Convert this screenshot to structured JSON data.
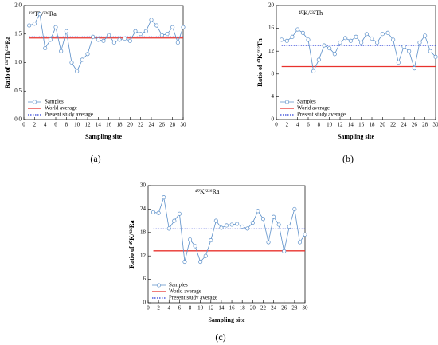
{
  "chart_data": [
    {
      "type": "line",
      "title": "²³²Th/²²⁶Ra",
      "caption": "(a)",
      "xlabel": "Sampling site",
      "ylabel": "Ratio of ²³²Th/²²⁶Ra",
      "x": [
        1,
        2,
        3,
        4,
        5,
        6,
        7,
        8,
        9,
        10,
        11,
        12,
        13,
        14,
        15,
        16,
        17,
        18,
        19,
        20,
        21,
        22,
        23,
        24,
        25,
        26,
        27,
        28,
        29,
        30
      ],
      "series": [
        {
          "name": "Samples",
          "color": "#5b8fc9",
          "values": [
            1.65,
            1.68,
            1.85,
            1.25,
            1.4,
            1.62,
            1.2,
            1.55,
            1.0,
            0.85,
            1.05,
            1.15,
            1.45,
            1.4,
            1.38,
            1.48,
            1.35,
            1.4,
            1.42,
            1.38,
            1.55,
            1.5,
            1.55,
            1.75,
            1.65,
            1.48,
            1.5,
            1.62,
            1.35,
            1.62
          ]
        }
      ],
      "hlines": [
        {
          "name": "World average",
          "color": "#e8322d",
          "value": 1.43,
          "style": "solid"
        },
        {
          "name": "Present study average",
          "color": "#2a3fd6",
          "value": 1.45,
          "style": "dotted"
        }
      ],
      "xlim": [
        0,
        30
      ],
      "xticks": [
        0,
        2,
        4,
        6,
        8,
        10,
        12,
        14,
        16,
        18,
        20,
        22,
        24,
        26,
        28,
        30
      ],
      "ylim": [
        0,
        2
      ],
      "yticks": [
        {
          "value": 0,
          "label": "0.0"
        },
        0.5,
        {
          "value": 1,
          "label": "1.0"
        },
        1.5,
        {
          "value": 2,
          "label": "2.0"
        }
      ],
      "legend": "lower left"
    },
    {
      "type": "line",
      "title": "⁴⁰K/²³²Th",
      "caption": "(b)",
      "xlabel": "Sampling site",
      "ylabel": "Ratio of ⁴⁰K/²³²Th",
      "x": [
        1,
        2,
        3,
        4,
        5,
        6,
        7,
        8,
        9,
        10,
        11,
        12,
        13,
        14,
        15,
        16,
        17,
        18,
        19,
        20,
        21,
        22,
        23,
        24,
        25,
        26,
        27,
        28,
        29,
        30
      ],
      "series": [
        {
          "name": "Samples",
          "color": "#5b8fc9",
          "values": [
            14,
            13.8,
            14.5,
            15.8,
            15.2,
            14,
            8.5,
            10.5,
            13,
            12.5,
            11.5,
            13.5,
            14.3,
            13.8,
            14.5,
            13.5,
            15,
            14.2,
            13.5,
            15,
            15.2,
            14,
            10,
            12.8,
            12,
            9,
            13.5,
            14.7,
            12,
            11
          ]
        }
      ],
      "hlines": [
        {
          "name": "World average",
          "color": "#e8322d",
          "value": 9.3,
          "style": "solid"
        },
        {
          "name": "Present study average",
          "color": "#2a3fd6",
          "value": 13,
          "style": "dotted"
        }
      ],
      "xlim": [
        0,
        30
      ],
      "xticks": [
        0,
        2,
        4,
        6,
        8,
        10,
        12,
        14,
        16,
        18,
        20,
        22,
        24,
        26,
        28,
        30
      ],
      "ylim": [
        0,
        20
      ],
      "yticks": [
        0,
        4,
        8,
        12,
        16,
        20
      ],
      "legend": "lower left"
    },
    {
      "type": "line",
      "title": "⁴⁰K/²²⁶Ra",
      "caption": "(c)",
      "xlabel": "Sampling site",
      "ylabel": "Ratio of ⁴⁰K/²²⁶Ra",
      "x": [
        1,
        2,
        3,
        4,
        5,
        6,
        7,
        8,
        9,
        10,
        11,
        12,
        13,
        14,
        15,
        16,
        17,
        18,
        19,
        20,
        21,
        22,
        23,
        24,
        25,
        26,
        27,
        28,
        29,
        30
      ],
      "series": [
        {
          "name": "Samples",
          "color": "#5b8fc9",
          "values": [
            23.2,
            23,
            27,
            19,
            21,
            22.8,
            10.5,
            16.2,
            14.5,
            10.5,
            12,
            16,
            21,
            19.2,
            19.8,
            20,
            20.2,
            19.5,
            19,
            20.5,
            23.5,
            21.5,
            15.5,
            22,
            20,
            13.2,
            19.5,
            24,
            15.5,
            17.5
          ]
        }
      ],
      "hlines": [
        {
          "name": "World average",
          "color": "#e8322d",
          "value": 13.3,
          "style": "solid"
        },
        {
          "name": "Present study average",
          "color": "#2a3fd6",
          "value": 18.9,
          "style": "dotted"
        }
      ],
      "xlim": [
        0,
        30
      ],
      "xticks": [
        0,
        2,
        4,
        6,
        8,
        10,
        12,
        14,
        16,
        18,
        20,
        22,
        24,
        26,
        28,
        30
      ],
      "ylim": [
        0,
        30
      ],
      "yticks": [
        0,
        6,
        12,
        18,
        24,
        30
      ],
      "legend": "lower left"
    }
  ]
}
